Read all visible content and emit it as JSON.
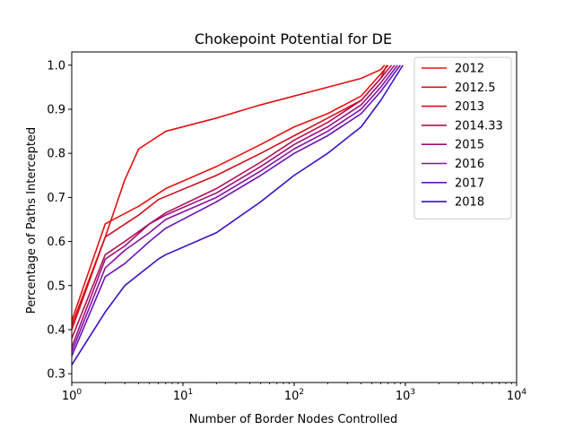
{
  "chart_data": {
    "type": "line",
    "title": "Chokepoint Potential for DE",
    "xlabel": "Number of Border Nodes Controlled",
    "ylabel": "Percentage of Paths Intercepted",
    "xscale": "log",
    "xlim": [
      1,
      10000
    ],
    "ylim": [
      0.28,
      1.03
    ],
    "xticks": [
      {
        "value": 1,
        "base": "10",
        "exp": "0"
      },
      {
        "value": 10,
        "base": "10",
        "exp": "1"
      },
      {
        "value": 100,
        "base": "10",
        "exp": "2"
      },
      {
        "value": 1000,
        "base": "10",
        "exp": "3"
      },
      {
        "value": 10000,
        "base": "10",
        "exp": "4"
      }
    ],
    "yticks": [
      {
        "value": 0.3,
        "label": "0.3"
      },
      {
        "value": 0.4,
        "label": "0.4"
      },
      {
        "value": 0.5,
        "label": "0.5"
      },
      {
        "value": 0.6,
        "label": "0.6"
      },
      {
        "value": 0.7,
        "label": "0.7"
      },
      {
        "value": 0.8,
        "label": "0.8"
      },
      {
        "value": 0.9,
        "label": "0.9"
      },
      {
        "value": 1.0,
        "label": "1.0"
      }
    ],
    "grid": false,
    "legend_position": "upper right",
    "series": [
      {
        "name": "2012",
        "color": "#ee1010",
        "x": [
          1,
          2,
          4,
          7,
          20,
          50,
          100,
          200,
          400,
          600,
          700
        ],
        "y": [
          0.42,
          0.64,
          0.68,
          0.72,
          0.77,
          0.82,
          0.86,
          0.89,
          0.93,
          0.98,
          1.0
        ]
      },
      {
        "name": "2012.5",
        "color": "#e21012",
        "x": [
          1,
          2,
          3,
          4,
          7,
          20,
          50,
          100,
          200,
          400,
          600,
          650
        ],
        "y": [
          0.41,
          0.61,
          0.74,
          0.81,
          0.85,
          0.88,
          0.91,
          0.93,
          0.95,
          0.97,
          0.99,
          1.0
        ]
      },
      {
        "name": "2013",
        "color": "#cf101e",
        "x": [
          1,
          2,
          4,
          6,
          20,
          50,
          100,
          200,
          400,
          600,
          680
        ],
        "y": [
          0.4,
          0.61,
          0.66,
          0.695,
          0.75,
          0.8,
          0.84,
          0.88,
          0.92,
          0.97,
          1.0
        ]
      },
      {
        "name": "2014.33",
        "color": "#b5104d",
        "x": [
          1,
          2,
          3,
          5,
          7,
          20,
          50,
          100,
          200,
          400,
          600,
          750
        ],
        "y": [
          0.38,
          0.57,
          0.6,
          0.64,
          0.665,
          0.72,
          0.78,
          0.83,
          0.87,
          0.92,
          0.97,
          1.0
        ]
      },
      {
        "name": "2015",
        "color": "#9c107a",
        "x": [
          1,
          2,
          3,
          5,
          7,
          20,
          50,
          100,
          200,
          400,
          600,
          800
        ],
        "y": [
          0.36,
          0.56,
          0.59,
          0.64,
          0.66,
          0.71,
          0.77,
          0.82,
          0.86,
          0.91,
          0.96,
          1.0
        ]
      },
      {
        "name": "2016",
        "color": "#8a10a2",
        "x": [
          1,
          2,
          3,
          5,
          7,
          20,
          50,
          100,
          200,
          400,
          600,
          850
        ],
        "y": [
          0.35,
          0.54,
          0.58,
          0.62,
          0.65,
          0.7,
          0.76,
          0.81,
          0.85,
          0.9,
          0.95,
          1.0
        ]
      },
      {
        "name": "2017",
        "color": "#6a10ba",
        "x": [
          1,
          2,
          3,
          5,
          7,
          20,
          50,
          100,
          200,
          400,
          600,
          900
        ],
        "y": [
          0.34,
          0.52,
          0.55,
          0.6,
          0.63,
          0.69,
          0.75,
          0.8,
          0.84,
          0.89,
          0.94,
          1.0
        ]
      },
      {
        "name": "2018",
        "color": "#3a10c8",
        "x": [
          1,
          2,
          3,
          6,
          7,
          20,
          50,
          100,
          200,
          400,
          600,
          950
        ],
        "y": [
          0.32,
          0.44,
          0.5,
          0.56,
          0.57,
          0.62,
          0.69,
          0.75,
          0.8,
          0.86,
          0.92,
          1.0
        ]
      }
    ]
  }
}
